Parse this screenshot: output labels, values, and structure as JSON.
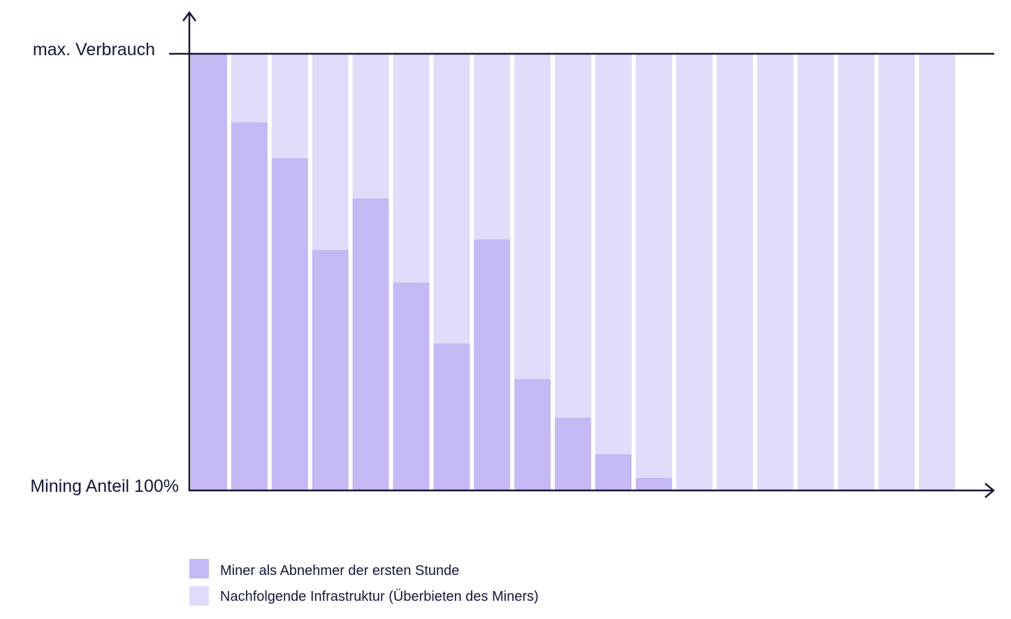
{
  "chart_data": {
    "type": "bar",
    "stacked": true,
    "categories": [
      "",
      "",
      "",
      "",
      "",
      "",
      "",
      "",
      "",
      "",
      "",
      "",
      "",
      "",
      "",
      "",
      "",
      "",
      ""
    ],
    "ylim": [
      0,
      100
    ],
    "y_ticks": [
      {
        "value": 100,
        "label": "max. Verbrauch"
      },
      {
        "value": 0,
        "label": "Mining Anteil 100%"
      }
    ],
    "series": [
      {
        "name": "Miner als Abnehmer der ersten Stunde",
        "color": "#c4b9f2",
        "values": [
          100,
          84.3,
          76.1,
          55.1,
          66.9,
          47.6,
          33.7,
          57.5,
          25.5,
          16.7,
          8.3,
          2.9,
          0,
          0,
          0,
          0,
          0,
          0,
          0
        ]
      },
      {
        "name": "Nachfolgende Infrastruktur (Überbieten des Miners)",
        "color": "#e1dcf9",
        "values": [
          0,
          15.7,
          23.9,
          44.9,
          33.1,
          52.4,
          66.3,
          42.5,
          74.5,
          83.3,
          91.7,
          97.1,
          100,
          100,
          100,
          100,
          100,
          100,
          100
        ]
      }
    ],
    "axis_color": "#131838",
    "grid": false,
    "legend_position": "bottom-left"
  }
}
